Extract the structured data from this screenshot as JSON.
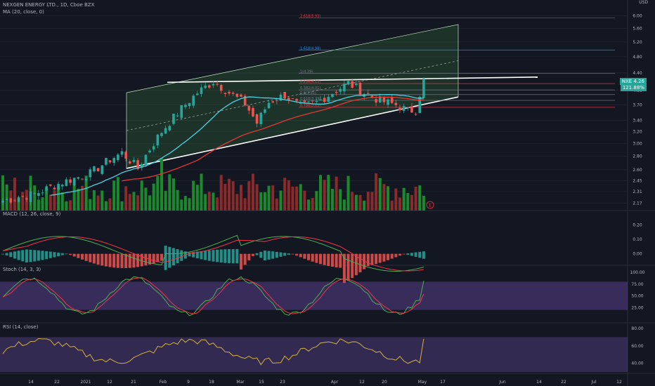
{
  "header": {
    "symbol": "NEXGEN ENERGY LTD., 1D, Cboe BZX",
    "ma": "MA (20, close, 0)",
    "currency": "USD"
  },
  "price_tag": {
    "symbol": "NXE",
    "value": "4.26",
    "percent": "121.88%"
  },
  "fib_labels": [
    "2.618(5.93)",
    "1.618(4.98)",
    "1(4.39)",
    "0.236(4.15)",
    "0.382(4.01)",
    "0.5(3.91)",
    "0.618(3.79)",
    "0.786(3.65)"
  ],
  "x_labels": [
    "14",
    "22",
    "2021",
    "12",
    "21",
    "Feb",
    "9",
    "18",
    "Mar",
    "15",
    "23",
    "Apr",
    "12",
    "20",
    "May",
    "17",
    "Jun",
    "14",
    "22",
    "Jul",
    "12"
  ],
  "earnings_marker": "E",
  "chart_data": [
    {
      "type": "line",
      "title": "NEXGEN ENERGY LTD., 1D, Cboe BZX",
      "ylim": [
        2.1,
        6.1
      ],
      "y_scale": "log",
      "y_ticks": [
        "6.00",
        "5.60",
        "5.20",
        "4.80",
        "4.40",
        "4.00",
        "3.70",
        "3.40",
        "3.20",
        "3.00",
        "2.80",
        "2.60",
        "2.45",
        "2.31",
        "2.17"
      ],
      "series": [
        {
          "name": "MA (20, close, 0)"
        }
      ],
      "annotations": [
        "2.618(5.93)",
        "1.618(4.98)",
        "1(4.39)",
        "0.236(4.15)",
        "0.382(4.01)",
        "0.5(3.91)",
        "0.618(3.79)",
        "0.786(3.65)"
      ],
      "last_close": 4.26,
      "grid": true,
      "legend": "top-left"
    },
    {
      "type": "line",
      "title": "MACD (12, 26, close, 9)",
      "ylim": [
        -0.05,
        0.25
      ],
      "y_ticks": [
        "0.20",
        "0.10",
        "0.00"
      ]
    },
    {
      "type": "line",
      "title": "Stoch (14, 3, 3)",
      "ylim": [
        0,
        100
      ],
      "y_ticks": [
        "100.00",
        "75.00",
        "50.00",
        "25.00"
      ],
      "bands": [
        20,
        80
      ]
    },
    {
      "type": "line",
      "title": "RSI (14, close)",
      "ylim": [
        30,
        80
      ],
      "y_ticks": [
        "80.00",
        "60.00",
        "40.00"
      ],
      "bands": [
        30,
        70
      ]
    }
  ]
}
